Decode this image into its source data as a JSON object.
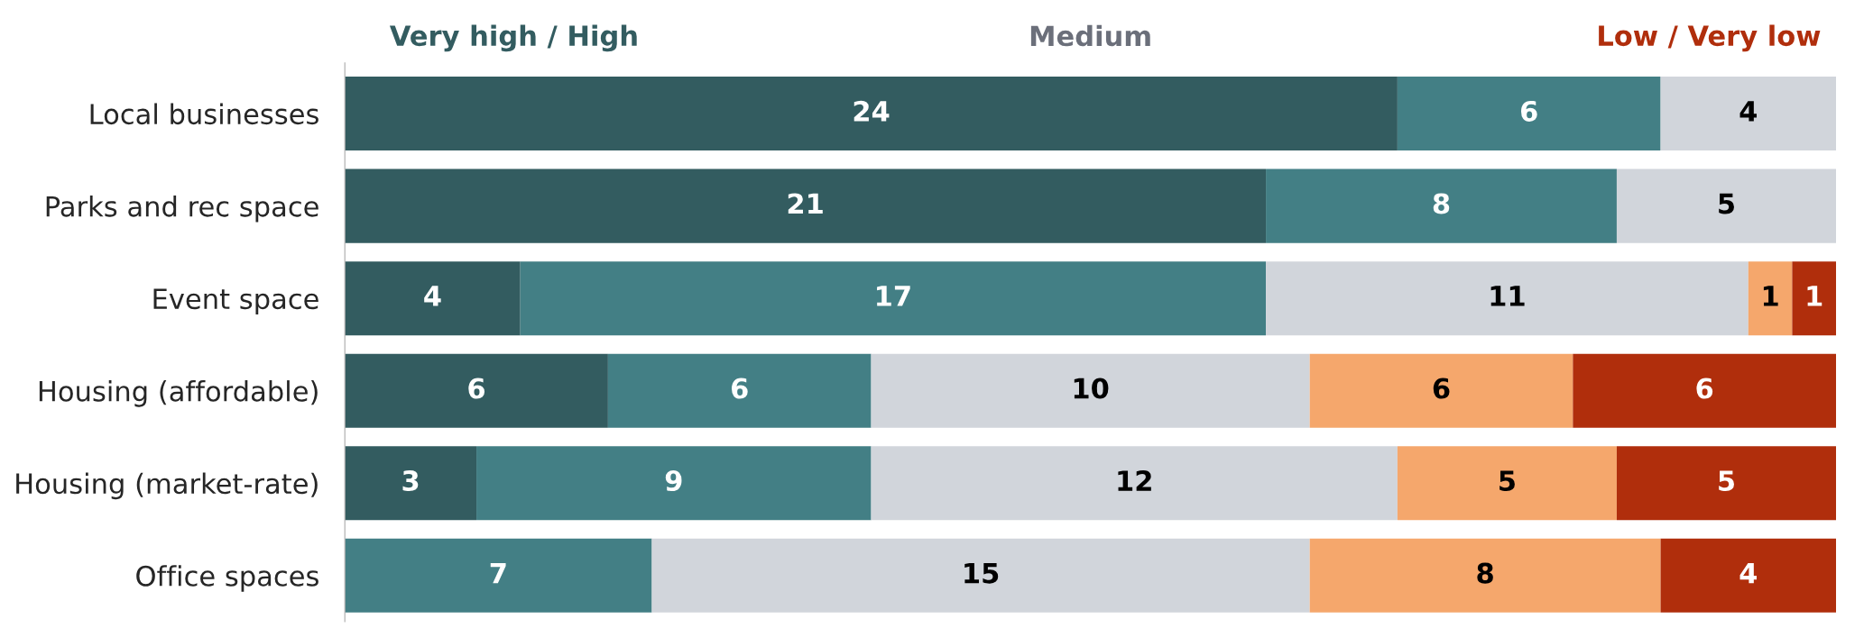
{
  "chart_data": {
    "type": "bar",
    "orientation": "horizontal",
    "stacked": true,
    "data_labels": true,
    "tick_labels": "y",
    "grid": false,
    "legend": false,
    "categories": [
      "Local businesses",
      "Parks and rec space",
      "Event space",
      "Housing (affordable)",
      "Housing (market-rate)",
      "Office spaces"
    ],
    "series": [
      {
        "color": "#335c60",
        "values": [
          24,
          21,
          4,
          6,
          3,
          null
        ]
      },
      {
        "color": "#437f85",
        "values": [
          6,
          8,
          17,
          6,
          9,
          7
        ]
      },
      {
        "color": "#d1d5db",
        "values": [
          4,
          5,
          11,
          10,
          12,
          15
        ]
      },
      {
        "color": "#f5a76c",
        "values": [
          null,
          null,
          1,
          6,
          5,
          8
        ]
      },
      {
        "color": "#b02e0c",
        "values": [
          null,
          null,
          1,
          6,
          5,
          4
        ]
      }
    ],
    "annotations": [
      "Very high / High",
      "Medium",
      "Low / Very low"
    ]
  }
}
